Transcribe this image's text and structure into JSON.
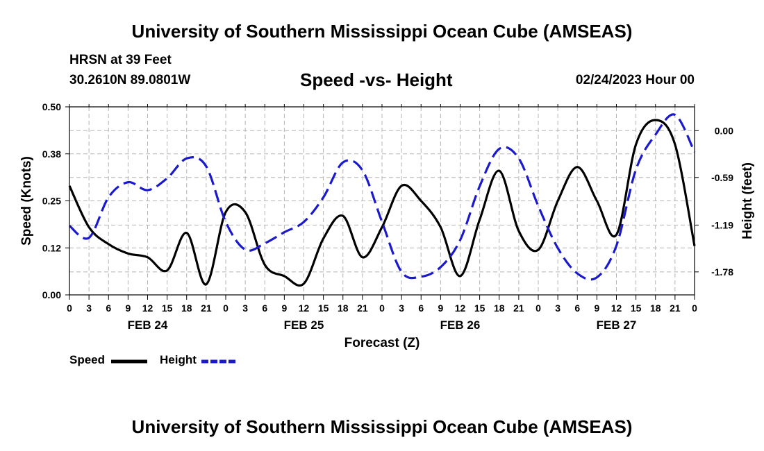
{
  "header": {
    "title": "University of Southern Mississippi Ocean Cube (AMSEAS)",
    "station": "HRSN at 39 Feet",
    "coordinates": "30.2610N  89.0801W",
    "subtitle": "Speed -vs- Height",
    "datetime": "02/24/2023 Hour 00"
  },
  "footer": {
    "title": "University of Southern Mississippi Ocean Cube (AMSEAS)"
  },
  "legend": {
    "items": [
      {
        "label": "Speed",
        "color": "#000000",
        "style": "solid"
      },
      {
        "label": "Height",
        "color": "#1a1acc",
        "style": "dashed"
      }
    ]
  },
  "chart_data": {
    "type": "line",
    "title": "Speed -vs- Height",
    "xlabel": "Forecast (Z)",
    "ylabel": "Speed (Knots)",
    "y2label": "Height (feet)",
    "x_range": [
      0,
      96
    ],
    "x_ticks": [
      0,
      3,
      6,
      9,
      12,
      15,
      18,
      21,
      24,
      27,
      30,
      33,
      36,
      39,
      42,
      45,
      48,
      51,
      54,
      57,
      60,
      63,
      66,
      69,
      72,
      75,
      78,
      81,
      84,
      87,
      90,
      93,
      96
    ],
    "x_tick_labels": [
      "0",
      "3",
      "6",
      "9",
      "12",
      "15",
      "18",
      "21",
      "0",
      "3",
      "6",
      "9",
      "12",
      "15",
      "18",
      "21",
      "0",
      "3",
      "6",
      "9",
      "12",
      "15",
      "18",
      "21",
      "0",
      "3",
      "6",
      "9",
      "12",
      "15",
      "18",
      "21",
      "0"
    ],
    "day_labels": [
      {
        "label": "FEB 24",
        "hour": 12
      },
      {
        "label": "FEB 25",
        "hour": 36
      },
      {
        "label": "FEB 26",
        "hour": 60
      },
      {
        "label": "FEB 27",
        "hour": 84
      }
    ],
    "y_left": {
      "range": [
        0,
        0.5
      ],
      "ticks": [
        0,
        0.125,
        0.25,
        0.375,
        0.5
      ],
      "tick_labels": [
        "0.00",
        "0.12",
        "0.25",
        "0.38",
        "0.50"
      ]
    },
    "y_right": {
      "range": [
        -2.07,
        0.3
      ],
      "ticks": [
        0.0,
        -0.59,
        -1.19,
        -1.78
      ],
      "tick_labels": [
        "0.00",
        "-0.59",
        "-1.19",
        "-1.78"
      ]
    },
    "grid": true,
    "series": [
      {
        "name": "Speed",
        "axis": "left",
        "color": "#000000",
        "dashed": false,
        "x": [
          0,
          3,
          6,
          9,
          12,
          15,
          18,
          21,
          24,
          27,
          30,
          33,
          36,
          39,
          42,
          45,
          48,
          51,
          54,
          57,
          60,
          63,
          66,
          69,
          72,
          75,
          78,
          81,
          84,
          87,
          90,
          93,
          96
        ],
        "y": [
          0.29,
          0.18,
          0.135,
          0.11,
          0.1,
          0.065,
          0.165,
          0.028,
          0.22,
          0.22,
          0.08,
          0.05,
          0.03,
          0.15,
          0.21,
          0.1,
          0.18,
          0.29,
          0.25,
          0.18,
          0.05,
          0.2,
          0.33,
          0.17,
          0.12,
          0.25,
          0.34,
          0.25,
          0.16,
          0.4,
          0.465,
          0.4,
          0.13
        ]
      },
      {
        "name": "Height",
        "axis": "right",
        "color": "#1a1acc",
        "dashed": true,
        "x": [
          0,
          3,
          6,
          9,
          12,
          15,
          18,
          21,
          24,
          27,
          30,
          33,
          36,
          39,
          42,
          45,
          48,
          51,
          54,
          57,
          60,
          63,
          66,
          69,
          72,
          75,
          78,
          81,
          84,
          87,
          90,
          93,
          96
        ],
        "y": [
          -1.2,
          -1.35,
          -0.84,
          -0.65,
          -0.75,
          -0.6,
          -0.35,
          -0.45,
          -1.15,
          -1.5,
          -1.42,
          -1.28,
          -1.15,
          -0.84,
          -0.4,
          -0.5,
          -1.15,
          -1.78,
          -1.84,
          -1.72,
          -1.38,
          -0.7,
          -0.23,
          -0.35,
          -0.95,
          -1.48,
          -1.8,
          -1.85,
          -1.45,
          -0.49,
          -0.05,
          0.2,
          -0.27
        ]
      }
    ]
  }
}
